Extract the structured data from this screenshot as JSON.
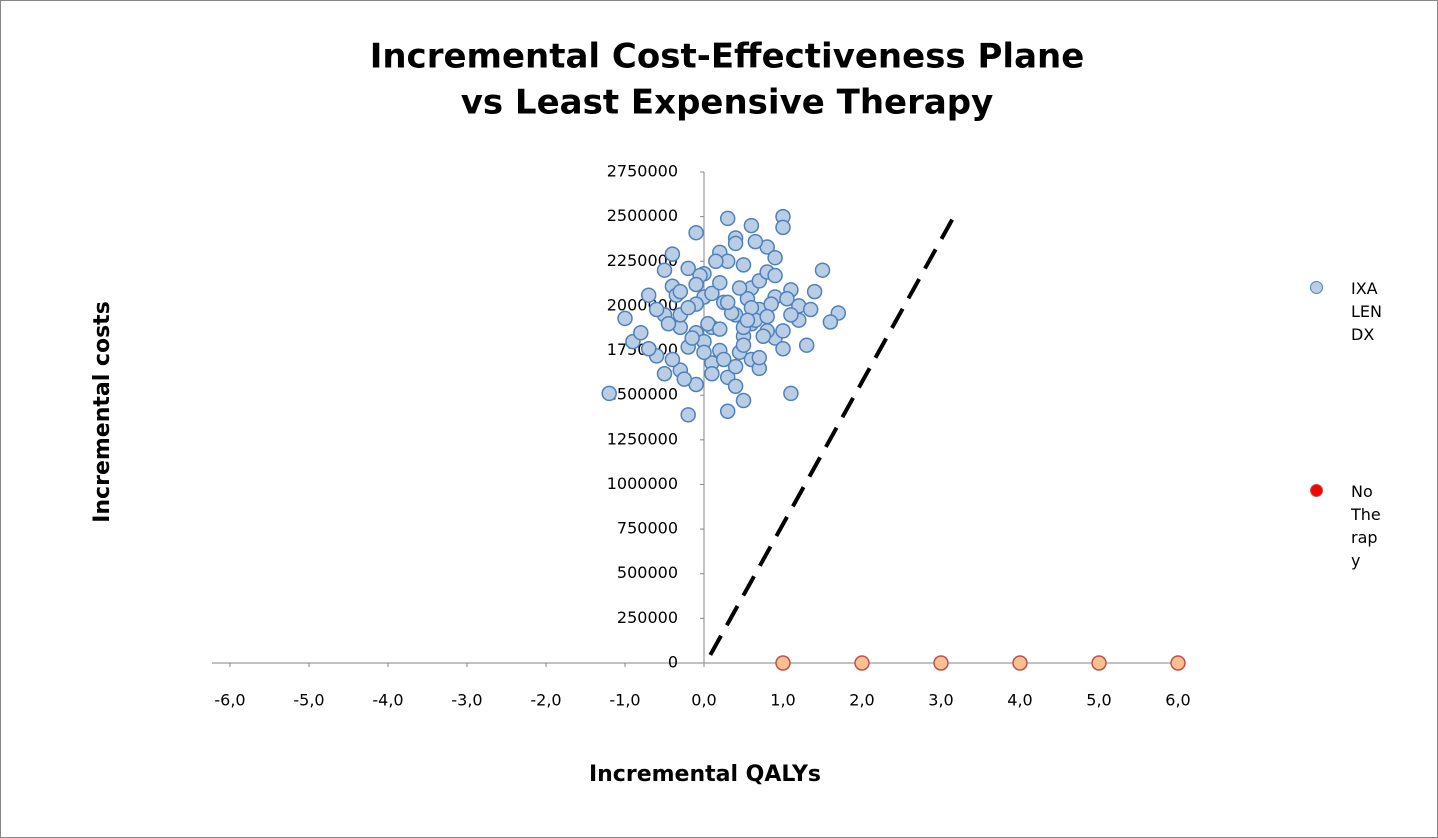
{
  "chart_data": {
    "type": "scatter",
    "title": "Incremental Cost-Effectiveness Plane",
    "subtitle": "vs Least Expensive Therapy",
    "x_label": "Incremental QALYs",
    "y_label": "Incremental costs",
    "xlim": [
      -6,
      6
    ],
    "ylim": [
      0,
      2750000
    ],
    "xticks": [
      {
        "value": -6,
        "label": "-6,0"
      },
      {
        "value": -5,
        "label": "-5,0"
      },
      {
        "value": -4,
        "label": "-4,0"
      },
      {
        "value": -3,
        "label": "-3,0"
      },
      {
        "value": -2,
        "label": "-2,0"
      },
      {
        "value": -1,
        "label": "-1,0"
      },
      {
        "value": 0,
        "label": "0,0"
      },
      {
        "value": 1,
        "label": "1,0"
      },
      {
        "value": 2,
        "label": "2,0"
      },
      {
        "value": 3,
        "label": "3,0"
      },
      {
        "value": 4,
        "label": "4,0"
      },
      {
        "value": 5,
        "label": "5,0"
      },
      {
        "value": 6,
        "label": "6,0"
      }
    ],
    "yticks": [
      0,
      250000,
      500000,
      750000,
      1000000,
      1250000,
      1500000,
      1750000,
      2000000,
      2250000,
      2500000,
      2750000
    ],
    "threshold_line": {
      "x": [
        0.08,
        3.2
      ],
      "y": [
        45000,
        2530000
      ],
      "color": "#000000"
    },
    "series": [
      {
        "name": "IXA LEN DX",
        "color": "#b9cde5",
        "edge_color": "#4f81bd",
        "x": [
          -1.2,
          -1.0,
          -0.2,
          0.3,
          1.0,
          1.0,
          1.7,
          1.6,
          1.1,
          -0.1,
          0.6,
          1.5,
          1.3,
          0.3,
          -0.9,
          -0.8,
          -0.7,
          -0.6,
          -0.5,
          -0.4,
          -0.3,
          -0.2,
          -0.1,
          0.0,
          0.1,
          0.2,
          0.4,
          0.5,
          0.6,
          0.7,
          0.8,
          0.9,
          1.1,
          1.2,
          1.4,
          -0.6,
          -0.5,
          -0.4,
          -0.3,
          -0.2,
          -0.1,
          0.0,
          0.1,
          0.2,
          0.3,
          0.4,
          0.5,
          0.6,
          0.7,
          0.8,
          0.9,
          1.0,
          1.2,
          -0.7,
          -0.5,
          -0.3,
          -0.1,
          0.1,
          0.3,
          0.5,
          0.7,
          0.9,
          1.1,
          -0.4,
          -0.2,
          0.0,
          0.2,
          0.4,
          0.6,
          0.8,
          1.0,
          -0.35,
          -0.15,
          0.05,
          0.25,
          0.45,
          0.65,
          0.85,
          0.15,
          0.35,
          0.55,
          0.75,
          -0.25,
          -0.05,
          0.45,
          0.65,
          0.2,
          0.4,
          0.6,
          0.0,
          -0.45,
          0.9,
          1.05,
          0.3,
          0.5,
          -0.3,
          0.1,
          0.7,
          0.8,
          0.4,
          0.5,
          -0.1,
          1.35,
          0.25,
          0.55
        ],
        "y": [
          1510000,
          1930000,
          1390000,
          2490000,
          2500000,
          2440000,
          1960000,
          1910000,
          1510000,
          2410000,
          2450000,
          2200000,
          1780000,
          1410000,
          1800000,
          1850000,
          2060000,
          1720000,
          1950000,
          2290000,
          1640000,
          2210000,
          1560000,
          2050000,
          1880000,
          1750000,
          2380000,
          1470000,
          2100000,
          1980000,
          2330000,
          1820000,
          2090000,
          1920000,
          2080000,
          1980000,
          1620000,
          2110000,
          1880000,
          1770000,
          2010000,
          2180000,
          1680000,
          2300000,
          1600000,
          1950000,
          2230000,
          1700000,
          2140000,
          1860000,
          2050000,
          1760000,
          2000000,
          1760000,
          2200000,
          1950000,
          1850000,
          2070000,
          2250000,
          1830000,
          1650000,
          2270000,
          1950000,
          1700000,
          1990000,
          1800000,
          2130000,
          1550000,
          1900000,
          2190000,
          1860000,
          2060000,
          1820000,
          1900000,
          2020000,
          1740000,
          2360000,
          2010000,
          2250000,
          1960000,
          2040000,
          1830000,
          1590000,
          2170000,
          2100000,
          1920000,
          1870000,
          1660000,
          1990000,
          1740000,
          1900000,
          2170000,
          2040000,
          2020000,
          1780000,
          2080000,
          1620000,
          1710000,
          1940000,
          2350000,
          1880000,
          2120000,
          1980000,
          1700000,
          1920000
        ]
      },
      {
        "name": "No Therapy",
        "color": "#fac090",
        "edge_color": "#c0504d",
        "legend_color": "#ff0000",
        "x": [
          1,
          2,
          3,
          4,
          5,
          6
        ],
        "y": [
          0,
          0,
          0,
          0,
          0,
          0
        ]
      }
    ]
  }
}
